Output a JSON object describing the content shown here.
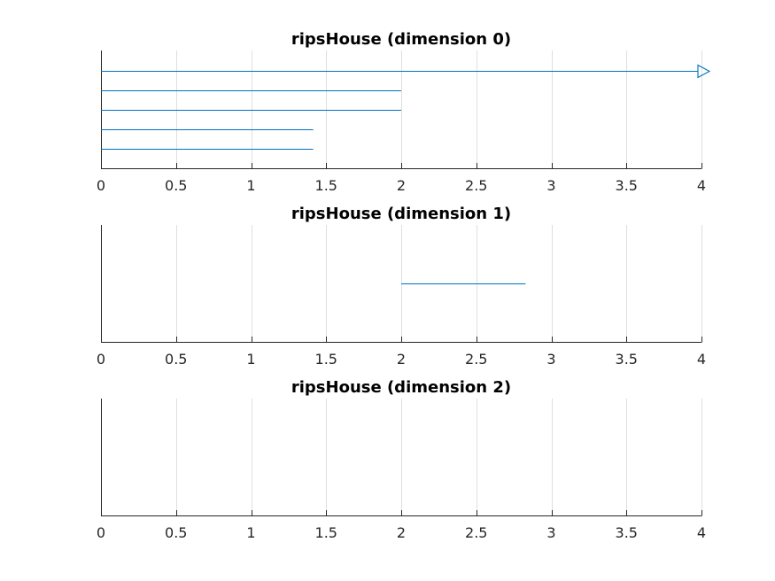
{
  "chart_data": [
    {
      "type": "barcode",
      "title": "ripsHouse (dimension 0)",
      "xlim": [
        0,
        4
      ],
      "xticks": [
        "0",
        "0.5",
        "1",
        "1.5",
        "2",
        "2.5",
        "3",
        "3.5",
        "4"
      ],
      "grid": true,
      "intervals": [
        {
          "birth": 0,
          "death": null,
          "infinite": true
        },
        {
          "birth": 0,
          "death": 2.0,
          "infinite": false
        },
        {
          "birth": 0,
          "death": 2.0,
          "infinite": false
        },
        {
          "birth": 0,
          "death": 1.414,
          "infinite": false
        },
        {
          "birth": 0,
          "death": 1.414,
          "infinite": false
        }
      ],
      "color": "#0072bd"
    },
    {
      "type": "barcode",
      "title": "ripsHouse (dimension 1)",
      "xlim": [
        0,
        4
      ],
      "xticks": [
        "0",
        "0.5",
        "1",
        "1.5",
        "2",
        "2.5",
        "3",
        "3.5",
        "4"
      ],
      "grid": true,
      "intervals": [
        {
          "birth": 2.0,
          "death": 2.828,
          "infinite": false
        }
      ],
      "color": "#0072bd"
    },
    {
      "type": "barcode",
      "title": "ripsHouse (dimension 2)",
      "xlim": [
        0,
        4
      ],
      "xticks": [
        "0",
        "0.5",
        "1",
        "1.5",
        "2",
        "2.5",
        "3",
        "3.5",
        "4"
      ],
      "grid": true,
      "intervals": [],
      "color": "#0072bd"
    }
  ]
}
